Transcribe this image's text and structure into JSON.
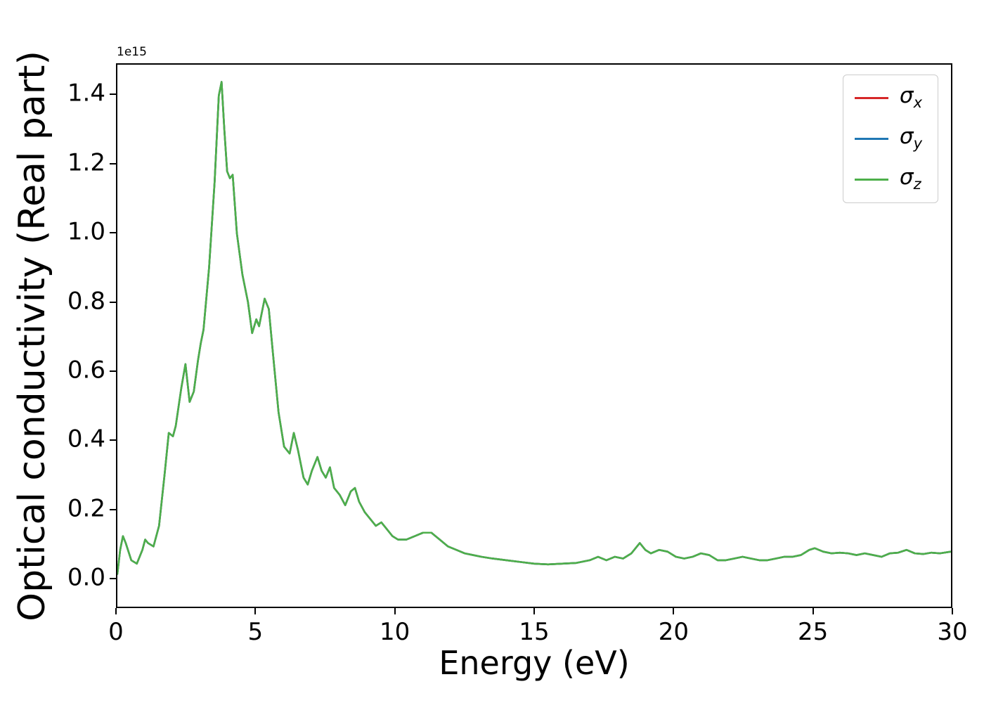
{
  "chart_data": {
    "type": "line",
    "title": "",
    "xlabel": "Energy (eV)",
    "ylabel": "Optical conductivity (Real part)",
    "y_offset_text": "1e15",
    "y_unit_scale": 1000000000000000.0,
    "xlim": [
      0,
      30
    ],
    "ylim": [
      -0.085,
      1.49
    ],
    "grid": false,
    "legend_position": "upper right",
    "xticks": [
      0,
      5,
      10,
      15,
      20,
      25,
      30
    ],
    "xtick_labels": [
      "0",
      "5",
      "10",
      "15",
      "20",
      "25",
      "30"
    ],
    "yticks": [
      0.0,
      0.2,
      0.4,
      0.6,
      0.8,
      1.0,
      1.2,
      1.4
    ],
    "ytick_labels": [
      "0.0",
      "0.2",
      "0.4",
      "0.6",
      "0.8",
      "1.0",
      "1.2",
      "1.4"
    ],
    "series_overlap": true,
    "series": [
      {
        "id": "sigma-x",
        "symbol": "σ",
        "sub": "x",
        "color": "#d62728"
      },
      {
        "id": "sigma-y",
        "symbol": "σ",
        "sub": "y",
        "color": "#1f77b4"
      },
      {
        "id": "sigma-z",
        "symbol": "σ",
        "sub": "z",
        "color": "#4daf4a"
      }
    ],
    "x": [
      0.0,
      0.1,
      0.2,
      0.3,
      0.5,
      0.7,
      0.9,
      1.0,
      1.1,
      1.3,
      1.5,
      1.7,
      1.85,
      2.0,
      2.1,
      2.3,
      2.45,
      2.6,
      2.75,
      2.9,
      3.0,
      3.1,
      3.3,
      3.5,
      3.65,
      3.75,
      3.85,
      3.95,
      4.05,
      4.15,
      4.3,
      4.5,
      4.7,
      4.85,
      5.0,
      5.1,
      5.3,
      5.45,
      5.6,
      5.8,
      6.0,
      6.2,
      6.35,
      6.5,
      6.7,
      6.85,
      7.0,
      7.2,
      7.35,
      7.5,
      7.65,
      7.8,
      8.0,
      8.2,
      8.4,
      8.55,
      8.7,
      8.9,
      9.1,
      9.3,
      9.5,
      9.7,
      9.9,
      10.1,
      10.4,
      10.7,
      11.0,
      11.3,
      11.6,
      11.9,
      12.2,
      12.5,
      12.8,
      13.1,
      13.5,
      14.0,
      14.5,
      15.0,
      15.5,
      16.0,
      16.5,
      17.0,
      17.3,
      17.6,
      17.9,
      18.2,
      18.5,
      18.8,
      19.0,
      19.2,
      19.5,
      19.8,
      20.1,
      20.4,
      20.7,
      21.0,
      21.3,
      21.6,
      21.9,
      22.2,
      22.5,
      22.8,
      23.1,
      23.4,
      23.7,
      24.0,
      24.3,
      24.6,
      24.9,
      25.1,
      25.4,
      25.7,
      26.0,
      26.3,
      26.6,
      26.9,
      27.2,
      27.5,
      27.8,
      28.1,
      28.4,
      28.7,
      29.0,
      29.3,
      29.6,
      30.0
    ],
    "y": [
      0.01,
      0.08,
      0.12,
      0.1,
      0.05,
      0.04,
      0.08,
      0.11,
      0.1,
      0.09,
      0.15,
      0.3,
      0.42,
      0.41,
      0.44,
      0.55,
      0.62,
      0.51,
      0.54,
      0.63,
      0.68,
      0.72,
      0.9,
      1.15,
      1.4,
      1.44,
      1.3,
      1.18,
      1.16,
      1.17,
      1.0,
      0.88,
      0.8,
      0.71,
      0.75,
      0.73,
      0.81,
      0.78,
      0.65,
      0.48,
      0.38,
      0.36,
      0.42,
      0.37,
      0.29,
      0.27,
      0.31,
      0.35,
      0.31,
      0.29,
      0.32,
      0.26,
      0.24,
      0.21,
      0.25,
      0.26,
      0.22,
      0.19,
      0.17,
      0.15,
      0.16,
      0.14,
      0.12,
      0.11,
      0.11,
      0.12,
      0.13,
      0.13,
      0.11,
      0.09,
      0.08,
      0.07,
      0.065,
      0.06,
      0.055,
      0.05,
      0.045,
      0.04,
      0.038,
      0.04,
      0.042,
      0.05,
      0.06,
      0.05,
      0.06,
      0.055,
      0.07,
      0.1,
      0.08,
      0.07,
      0.08,
      0.075,
      0.06,
      0.055,
      0.06,
      0.07,
      0.065,
      0.05,
      0.05,
      0.055,
      0.06,
      0.055,
      0.05,
      0.05,
      0.055,
      0.06,
      0.06,
      0.065,
      0.08,
      0.085,
      0.075,
      0.07,
      0.072,
      0.07,
      0.065,
      0.07,
      0.065,
      0.06,
      0.07,
      0.072,
      0.08,
      0.07,
      0.068,
      0.072,
      0.07,
      0.075
    ]
  }
}
